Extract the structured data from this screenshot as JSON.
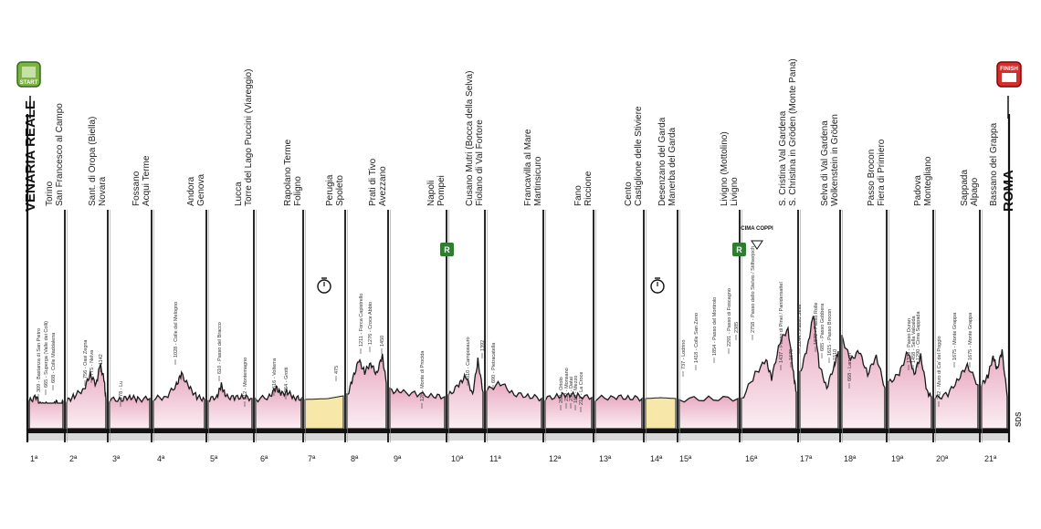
{
  "route": {
    "start_city": "VENARIA REALE",
    "finish_city": "ROMA",
    "start_badge": "START",
    "finish_badge": "FINISH",
    "cima_coppi": "CIMA COPPI",
    "rest_marker": "R",
    "credit": "SDS"
  },
  "stages": [
    {
      "n": "1ª",
      "cities": [
        "Torino",
        "San Francesco al Campo"
      ]
    },
    {
      "n": "2ª",
      "cities": [
        "Sant. di Oropa (Biella)",
        "Novara"
      ]
    },
    {
      "n": "3ª",
      "cities": [
        "Fossano",
        "Acqui Terme"
      ]
    },
    {
      "n": "4ª",
      "cities": [
        "Andora",
        "Genova"
      ]
    },
    {
      "n": "5ª",
      "cities": [
        "Lucca",
        "Torre del Lago Puccini (Viareggio)"
      ]
    },
    {
      "n": "6ª",
      "cities": [
        "Rapolano Terme",
        "Foligno"
      ]
    },
    {
      "n": "7ª",
      "cities": [
        "Perugia",
        "Spoleto"
      ]
    },
    {
      "n": "8ª",
      "cities": [
        "Prati di Tivo",
        "Avezzano"
      ]
    },
    {
      "n": "9ª",
      "cities": [
        "Napoli",
        "Pompei"
      ]
    },
    {
      "n": "10ª",
      "cities": [
        "Cusano Mutri (Bocca della Selva)",
        "Fiolano di Val Fortore"
      ]
    },
    {
      "n": "11ª",
      "cities": [
        "Francavilla al Mare",
        "Martinsicuro"
      ]
    },
    {
      "n": "12ª",
      "cities": [
        "Fano",
        "Riccione"
      ]
    },
    {
      "n": "13ª",
      "cities": [
        "Cento",
        "Castiglione delle Stiviere"
      ]
    },
    {
      "n": "14ª",
      "cities": [
        "Desenzano del Garda",
        "Manerba del Garda"
      ]
    },
    {
      "n": "15ª",
      "cities": [
        "Livigno (Mottolino)",
        "Livigno"
      ]
    },
    {
      "n": "16ª",
      "cities": [
        "S. Cristina Val Gardena",
        "S. Christina in Gröden (Monte Pana)"
      ]
    },
    {
      "n": "17ª",
      "cities": [
        "Selva di Val Gardena",
        "Wolkenstein in Gröden"
      ]
    },
    {
      "n": "18ª",
      "cities": [
        "Passo Brocon",
        "Fiera di Primiero"
      ]
    },
    {
      "n": "19ª",
      "cities": [
        "Padova",
        "Montegliano"
      ]
    },
    {
      "n": "20ª",
      "cities": [
        "Sappada",
        "Alpago"
      ]
    },
    {
      "n": "21ª",
      "cities": [
        "Bassano del Grappa",
        "Roma"
      ]
    }
  ],
  "climbs": [
    "309 - Bastanza di San Pietro",
    "665 - Superga (Valle dei Colli)",
    "608 - Colle Maddalena",
    "756 - Oasi Zegna",
    "775 - Nelva",
    "1142",
    "278 - Lu",
    "1028 - Colle del Melogno",
    "610 - Passo del Bracco",
    "212 - Montemagno",
    "516 - Volterra",
    "364 - Grotti",
    "475",
    "1211 - Forca Capistrello",
    "1276 - Croce Abbio",
    "1450",
    "128 - Monte di Procida",
    "810 - Camposauro",
    "1392",
    "690 - Pietracatella",
    "260 - Oriolo",
    "232 - Monsano",
    "235 - Datai",
    "189 - Mezzo",
    "213 - La Croce",
    "737 - Lodrino",
    "1418 - Colle San Zeno",
    "1854 - Passo del Mortirolo",
    "2291 - Passo di Foscagno",
    "2385",
    "2758 - Passo dello Stelvio / Stilfserjoch",
    "1437 - Passo di Pinei / Panidersattel",
    "1670",
    "2244 - Passo Sella",
    "1872 - Passo Rolle",
    "685 - Passo Gobbera",
    "1615 - Passo Brocon",
    "1510",
    "668 - Lamon",
    "1379 - Passo Duran",
    "1458 - Sella Valcalda",
    "1290 - Cima Sappada",
    "242 - Muro di Ca' del Poggio",
    "1675 - Monte Grappa",
    "1675 - Monte Grappa"
  ],
  "colors": {
    "profile_fill": "#f3d3df",
    "profile_stroke": "#1a1a1a",
    "itt_fill": "#f7e7a8",
    "rest_green": "#2e7d32",
    "start_green": "#7cb342",
    "finish_red": "#d32f2f"
  }
}
